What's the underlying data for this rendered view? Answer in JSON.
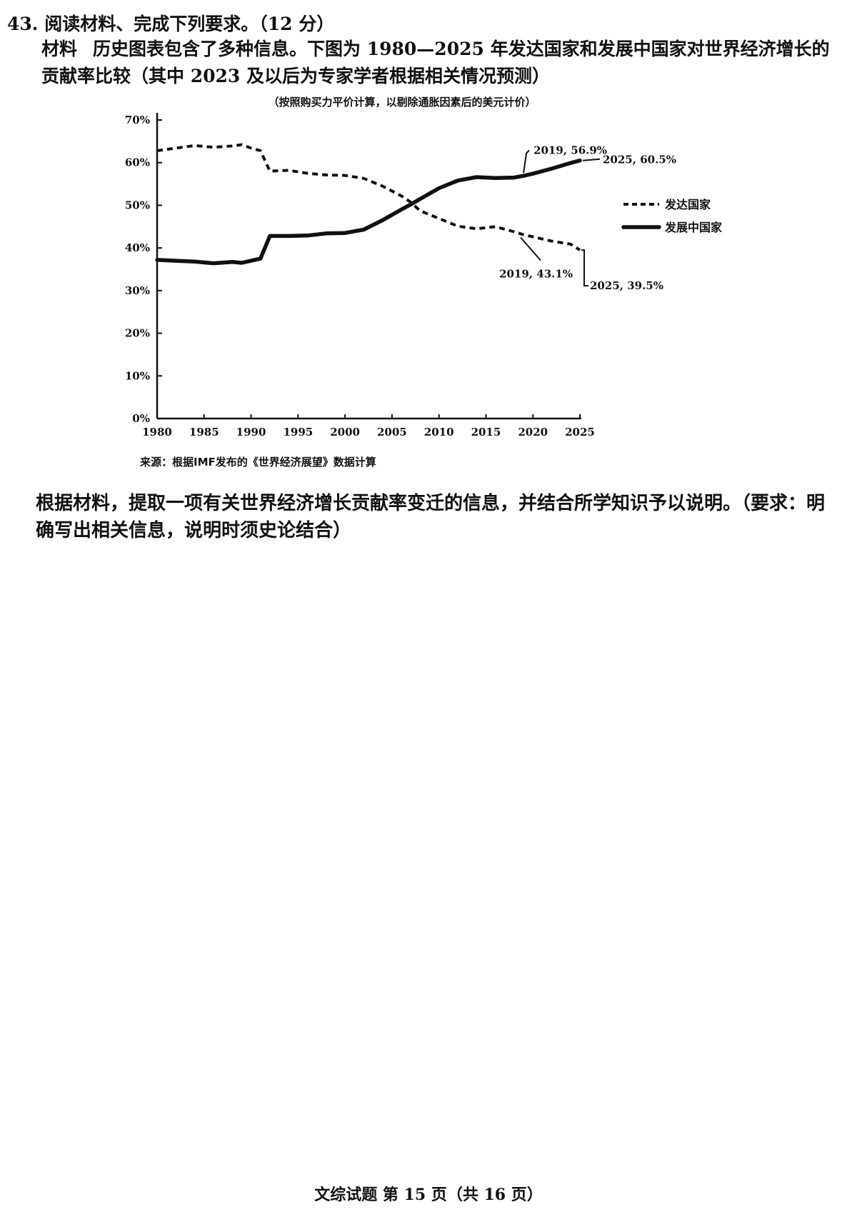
{
  "question": {
    "header": "43. 阅读材料、完成下列要求。（12 分）",
    "material_label": "材料",
    "material_text": "历史图表包含了多种信息。下图为 1980—2025 年发达国家和发展中国家对世界经济增长的贡献率比较（其中 2023 及以后为专家学者根据相关情况预测）"
  },
  "chart_data": {
    "type": "line",
    "subtitle": "（按照购买力平价计算，以剔除通胀因素后的美元计价）",
    "source": "来源：根据IMF发布的《世界经济展望》数据计算",
    "x": [
      1980,
      1982,
      1984,
      1986,
      1988,
      1989,
      1990,
      1991,
      1992,
      1994,
      1996,
      1998,
      2000,
      2002,
      2004,
      2006,
      2007,
      2008,
      2010,
      2012,
      2014,
      2016,
      2018,
      2019,
      2020,
      2022,
      2024,
      2025
    ],
    "series": [
      {
        "name": "发达国家",
        "style": "dashed",
        "values": [
          62.8,
          63.4,
          64.0,
          63.6,
          63.9,
          64.2,
          63.4,
          62.8,
          58.0,
          58.2,
          57.5,
          57.1,
          57.0,
          56.3,
          54.5,
          52.2,
          50.7,
          48.7,
          46.9,
          45.1,
          44.5,
          45.0,
          43.8,
          43.1,
          42.6,
          41.6,
          40.9,
          39.5
        ]
      },
      {
        "name": "发展中国家",
        "style": "solid",
        "values": [
          37.2,
          37.0,
          36.8,
          36.4,
          36.7,
          36.5,
          37.0,
          37.5,
          42.8,
          42.8,
          42.9,
          43.4,
          43.5,
          44.3,
          46.5,
          49.0,
          50.2,
          51.5,
          54.0,
          55.8,
          56.6,
          56.4,
          56.5,
          56.9,
          57.4,
          58.6,
          59.9,
          60.5
        ]
      }
    ],
    "annotations": [
      {
        "label": "2019, 56.9%",
        "x": 2019,
        "y": 56.9,
        "series": 1
      },
      {
        "label": "2025, 60.5%",
        "x": 2025,
        "y": 60.5,
        "series": 1
      },
      {
        "label": "2019, 43.1%",
        "x": 2019,
        "y": 43.1,
        "series": 0
      },
      {
        "label": "2025, 39.5%",
        "x": 2025,
        "y": 39.5,
        "series": 0
      }
    ],
    "x_ticks": [
      "1980",
      "1985",
      "1990",
      "1995",
      "2000",
      "2005",
      "2010",
      "2015",
      "2020",
      "2025"
    ],
    "y_ticks": [
      "0%",
      "10%",
      "20%",
      "30%",
      "40%",
      "50%",
      "60%",
      "70%"
    ],
    "xlim": [
      1980,
      2025
    ],
    "ylim": [
      0,
      70
    ],
    "grid": false,
    "legend_position": "right",
    "colors": {
      "line": "#111111"
    }
  },
  "prompt": "根据材料，提取一项有关世界经济增长贡献率变迁的信息，并结合所学知识予以说明。（要求：明确写出相关信息，说明时须史论结合）",
  "footer": "文综试题 第 15 页（共 16 页）"
}
